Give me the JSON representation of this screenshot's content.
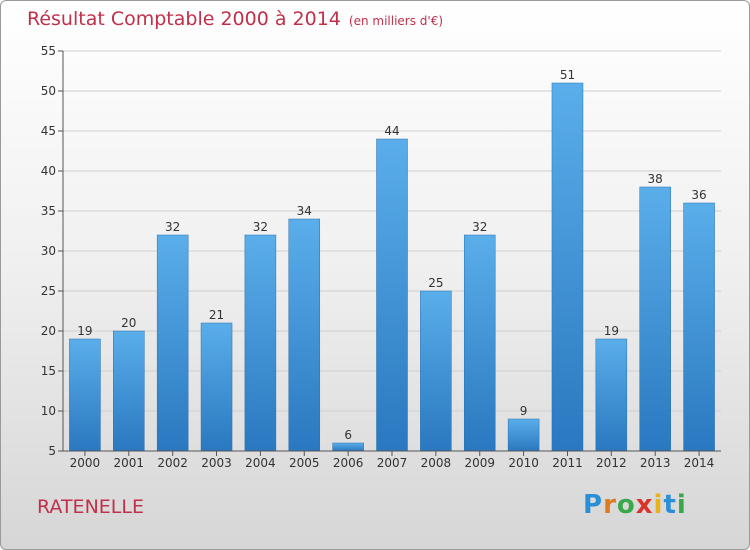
{
  "chart_data": {
    "type": "bar",
    "title": "Résultat Comptable 2000 à 2014",
    "subtitle": "(en milliers d'€)",
    "categories": [
      "2000",
      "2001",
      "2002",
      "2003",
      "2004",
      "2005",
      "2006",
      "2007",
      "2008",
      "2009",
      "2010",
      "2011",
      "2012",
      "2013",
      "2014"
    ],
    "values": [
      19,
      20,
      32,
      21,
      32,
      34,
      6,
      44,
      25,
      32,
      9,
      51,
      19,
      38,
      36
    ],
    "ylim": [
      5,
      55
    ],
    "yticks": [
      5,
      10,
      15,
      20,
      25,
      30,
      35,
      40,
      45,
      50,
      55
    ],
    "xlabel": "",
    "ylabel": "",
    "grid": true
  },
  "footer": {
    "place": "RATENELLE",
    "logo_letters": [
      "P",
      "r",
      "o",
      "x",
      "i",
      "t",
      "i"
    ]
  },
  "colors": {
    "bar_top": "#5aaeea",
    "bar_bottom": "#2a78c0",
    "title": "#c0304a"
  }
}
